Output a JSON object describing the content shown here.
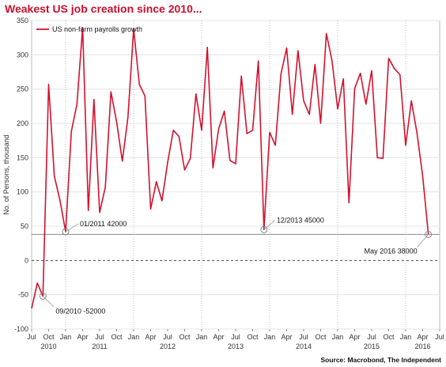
{
  "header": {
    "title": "Weakest US job creation since 2010..."
  },
  "footer": {
    "source": "Source: Macrobond, The Independent"
  },
  "colors": {
    "series": "#d2122e",
    "title": "#c8102e",
    "reference_line": "#888888"
  },
  "chart_data": {
    "type": "line",
    "title": "Weakest US job creation since 2010...",
    "ylabel": "No. of Persons, thousand",
    "xlabel": "",
    "ylim": [
      -100,
      350
    ],
    "y_ticks": [
      -100,
      -50,
      0,
      50,
      100,
      150,
      200,
      250,
      300,
      350
    ],
    "x_range": [
      "2010-07",
      "2016-07"
    ],
    "x_ticks": [
      {
        "date": "2010-07",
        "label": "Jul"
      },
      {
        "date": "2010-10",
        "label": "Oct"
      },
      {
        "date": "2011-01",
        "label": "Jan"
      },
      {
        "date": "2011-04",
        "label": "Apr"
      },
      {
        "date": "2011-07",
        "label": "Jul"
      },
      {
        "date": "2011-10",
        "label": "Oct"
      },
      {
        "date": "2012-01",
        "label": "Jan"
      },
      {
        "date": "2012-04",
        "label": "Apr"
      },
      {
        "date": "2012-07",
        "label": "Jul"
      },
      {
        "date": "2012-10",
        "label": "Oct"
      },
      {
        "date": "2013-01",
        "label": "Jan"
      },
      {
        "date": "2013-04",
        "label": "Apr"
      },
      {
        "date": "2013-07",
        "label": "Jul"
      },
      {
        "date": "2013-10",
        "label": "Oct"
      },
      {
        "date": "2014-01",
        "label": "Jan"
      },
      {
        "date": "2014-04",
        "label": "Apr"
      },
      {
        "date": "2014-07",
        "label": "Jul"
      },
      {
        "date": "2014-10",
        "label": "Oct"
      },
      {
        "date": "2015-01",
        "label": "Jan"
      },
      {
        "date": "2015-04",
        "label": "Apr"
      },
      {
        "date": "2015-07",
        "label": "Jul"
      },
      {
        "date": "2015-10",
        "label": "Oct"
      },
      {
        "date": "2016-01",
        "label": "Jan"
      },
      {
        "date": "2016-04",
        "label": "Apr"
      },
      {
        "date": "2016-07",
        "label": "Jul"
      }
    ],
    "year_labels": [
      {
        "date": "2010-10",
        "label": "2010"
      },
      {
        "date": "2011-07",
        "label": "2011"
      },
      {
        "date": "2012-07",
        "label": "2012"
      },
      {
        "date": "2013-07",
        "label": "2013"
      },
      {
        "date": "2014-07",
        "label": "2014"
      },
      {
        "date": "2015-07",
        "label": "2015"
      },
      {
        "date": "2016-04",
        "label": "2016"
      }
    ],
    "grid": true,
    "legend": {
      "position": "top-left"
    },
    "reference_line": {
      "y": 38
    },
    "zero_line": {
      "y": 0,
      "style": "dashed"
    },
    "series": [
      {
        "name": "US non-farm payrolls growth",
        "x": [
          "2010-07",
          "2010-08",
          "2010-09",
          "2010-10",
          "2010-11",
          "2010-12",
          "2011-01",
          "2011-02",
          "2011-03",
          "2011-04",
          "2011-05",
          "2011-06",
          "2011-07",
          "2011-08",
          "2011-09",
          "2011-10",
          "2011-11",
          "2011-12",
          "2012-01",
          "2012-02",
          "2012-03",
          "2012-04",
          "2012-05",
          "2012-06",
          "2012-07",
          "2012-08",
          "2012-09",
          "2012-10",
          "2012-11",
          "2012-12",
          "2013-01",
          "2013-02",
          "2013-03",
          "2013-04",
          "2013-05",
          "2013-06",
          "2013-07",
          "2013-08",
          "2013-09",
          "2013-10",
          "2013-11",
          "2013-12",
          "2014-01",
          "2014-02",
          "2014-03",
          "2014-04",
          "2014-05",
          "2014-06",
          "2014-07",
          "2014-08",
          "2014-09",
          "2014-10",
          "2014-11",
          "2014-12",
          "2015-01",
          "2015-02",
          "2015-03",
          "2015-04",
          "2015-05",
          "2015-06",
          "2015-07",
          "2015-08",
          "2015-09",
          "2015-10",
          "2015-11",
          "2015-12",
          "2016-01",
          "2016-02",
          "2016-03",
          "2016-04",
          "2016-05"
        ],
        "values": [
          -70,
          -33,
          -52,
          257,
          123,
          88,
          42,
          188,
          228,
          340,
          73,
          235,
          70,
          107,
          246,
          202,
          145,
          209,
          338,
          257,
          240,
          75,
          115,
          87,
          143,
          190,
          181,
          132,
          149,
          243,
          190,
          311,
          135,
          192,
          218,
          146,
          141,
          269,
          185,
          190,
          291,
          45,
          187,
          168,
          272,
          310,
          213,
          306,
          233,
          213,
          286,
          200,
          331,
          292,
          221,
          265,
          84,
          251,
          273,
          228,
          277,
          150,
          149,
          295,
          280,
          271,
          168,
          233,
          186,
          123,
          38
        ]
      }
    ],
    "annotations": [
      {
        "date": "2010-09",
        "value": -52,
        "text": "09/2010 -52000"
      },
      {
        "date": "2011-01",
        "value": 42,
        "text": "01/2011 42000"
      },
      {
        "date": "2013-12",
        "value": 45,
        "text": "12/2013 45000"
      },
      {
        "date": "2016-05",
        "value": 38,
        "text": "May 2016 38000"
      }
    ]
  }
}
